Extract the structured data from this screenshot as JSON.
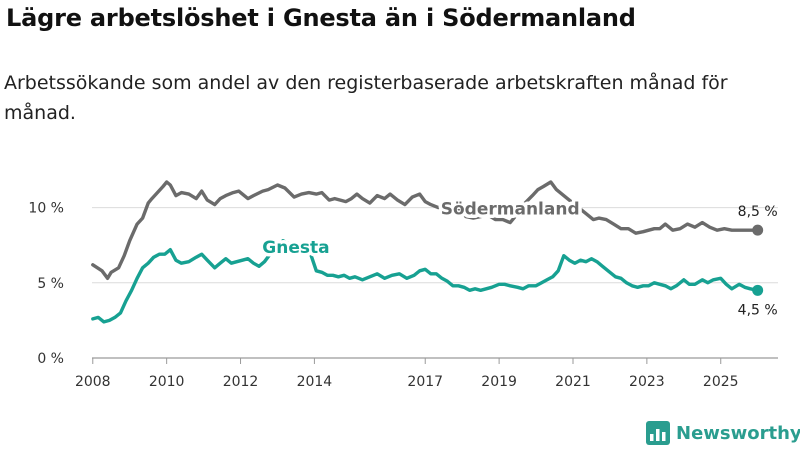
{
  "title": "Lägre arbetslöshet i Gnesta än i Södermanland",
  "subtitle": "Arbetssökande som andel av den registerbaserade arbetskraften månad för månad.",
  "brand": {
    "name": "Newsworthy",
    "color": "#2a9d8f"
  },
  "chart_data": {
    "type": "line",
    "title": "Lägre arbetslöshet i Gnesta än i Södermanland",
    "xlabel": "",
    "ylabel": "",
    "xlim": [
      2007.6,
      2026.55
    ],
    "ylim": [
      0,
      12.5
    ],
    "y_ticks": [
      0,
      5,
      10
    ],
    "y_tick_labels": [
      "0 %",
      "5 %",
      "10 %"
    ],
    "x_ticks": [
      2008,
      2010,
      2012,
      2014,
      2017,
      2019,
      2021,
      2023,
      2025
    ],
    "x_tick_labels": [
      "2008",
      "2010",
      "2012",
      "2014",
      "2017",
      "2019",
      "2021",
      "2023",
      "2025"
    ],
    "grid": true,
    "series": [
      {
        "name": "Södermanland",
        "color": "#6b6b6b",
        "end_label": "8,5 %",
        "x": [
          2008.0,
          2008.25,
          2008.4,
          2008.5,
          2008.7,
          2008.85,
          2009.0,
          2009.2,
          2009.35,
          2009.5,
          2009.6,
          2009.75,
          2009.9,
          2010.0,
          2010.1,
          2010.25,
          2010.4,
          2010.6,
          2010.8,
          2010.95,
          2011.1,
          2011.3,
          2011.45,
          2011.6,
          2011.8,
          2011.95,
          2012.2,
          2012.35,
          2012.6,
          2012.75,
          2013.0,
          2013.2,
          2013.45,
          2013.65,
          2013.85,
          2014.05,
          2014.2,
          2014.4,
          2014.55,
          2014.7,
          2014.85,
          2015.0,
          2015.15,
          2015.3,
          2015.5,
          2015.7,
          2015.9,
          2016.05,
          2016.25,
          2016.45,
          2016.65,
          2016.85,
          2017.0,
          2017.15,
          2017.35,
          2017.5,
          2017.7,
          2017.9,
          2018.1,
          2018.3,
          2018.5,
          2018.7,
          2018.9,
          2019.1,
          2019.3,
          2019.5,
          2019.7,
          2019.9,
          2020.05,
          2020.2,
          2020.4,
          2020.55,
          2020.7,
          2020.85,
          2021.0,
          2021.2,
          2021.4,
          2021.55,
          2021.7,
          2021.9,
          2022.1,
          2022.3,
          2022.5,
          2022.7,
          2022.9,
          2023.05,
          2023.2,
          2023.35,
          2023.5,
          2023.7,
          2023.9,
          2024.1,
          2024.3,
          2024.5,
          2024.7,
          2024.9,
          2025.1,
          2025.3,
          2025.5,
          2025.7,
          2025.85,
          2026.0
        ],
        "y": [
          6.2,
          5.8,
          5.3,
          5.7,
          6.0,
          6.8,
          7.8,
          8.9,
          9.3,
          10.3,
          10.6,
          11.0,
          11.4,
          11.7,
          11.5,
          10.8,
          11.0,
          10.9,
          10.6,
          11.1,
          10.5,
          10.2,
          10.6,
          10.8,
          11.0,
          11.1,
          10.6,
          10.8,
          11.1,
          11.2,
          11.5,
          11.3,
          10.7,
          10.9,
          11.0,
          10.9,
          11.0,
          10.5,
          10.6,
          10.5,
          10.4,
          10.6,
          10.9,
          10.6,
          10.3,
          10.8,
          10.6,
          10.9,
          10.5,
          10.2,
          10.7,
          10.9,
          10.4,
          10.2,
          10.0,
          10.2,
          10.3,
          9.9,
          9.4,
          9.3,
          9.4,
          9.5,
          9.2,
          9.2,
          9.0,
          9.6,
          10.3,
          10.8,
          11.2,
          11.4,
          11.7,
          11.2,
          10.9,
          10.6,
          10.3,
          9.9,
          9.5,
          9.2,
          9.3,
          9.2,
          8.9,
          8.6,
          8.6,
          8.3,
          8.4,
          8.5,
          8.6,
          8.6,
          8.9,
          8.5,
          8.6,
          8.9,
          8.7,
          9.0,
          8.7,
          8.5,
          8.6,
          8.5,
          8.5,
          8.5,
          8.5,
          8.5
        ]
      },
      {
        "name": "Gnesta",
        "color": "#17a192",
        "end_label": "4,5 %",
        "x": [
          2008.0,
          2008.15,
          2008.3,
          2008.45,
          2008.6,
          2008.75,
          2008.9,
          2009.05,
          2009.2,
          2009.35,
          2009.5,
          2009.65,
          2009.8,
          2009.95,
          2010.1,
          2010.25,
          2010.4,
          2010.6,
          2010.8,
          2010.95,
          2011.1,
          2011.3,
          2011.45,
          2011.6,
          2011.75,
          2011.9,
          2012.05,
          2012.2,
          2012.35,
          2012.5,
          2012.65,
          2012.8,
          2013.0,
          2013.15,
          2013.3,
          2013.45,
          2013.6,
          2013.75,
          2013.9,
          2014.05,
          2014.2,
          2014.35,
          2014.5,
          2014.65,
          2014.8,
          2014.95,
          2015.1,
          2015.3,
          2015.5,
          2015.7,
          2015.9,
          2016.1,
          2016.3,
          2016.5,
          2016.7,
          2016.85,
          2017.0,
          2017.15,
          2017.3,
          2017.45,
          2017.6,
          2017.75,
          2017.9,
          2018.05,
          2018.2,
          2018.35,
          2018.5,
          2018.65,
          2018.8,
          2019.0,
          2019.15,
          2019.3,
          2019.5,
          2019.65,
          2019.8,
          2020.0,
          2020.15,
          2020.3,
          2020.45,
          2020.6,
          2020.75,
          2020.9,
          2021.05,
          2021.2,
          2021.35,
          2021.5,
          2021.65,
          2021.8,
          2022.0,
          2022.15,
          2022.3,
          2022.45,
          2022.6,
          2022.75,
          2022.9,
          2023.05,
          2023.2,
          2023.35,
          2023.5,
          2023.65,
          2023.8,
          2024.0,
          2024.15,
          2024.3,
          2024.5,
          2024.65,
          2024.8,
          2025.0,
          2025.15,
          2025.3,
          2025.5,
          2025.65,
          2025.8,
          2026.0
        ],
        "y": [
          2.6,
          2.7,
          2.4,
          2.5,
          2.7,
          3.0,
          3.8,
          4.5,
          5.3,
          6.0,
          6.3,
          6.7,
          6.9,
          6.9,
          7.2,
          6.5,
          6.3,
          6.4,
          6.7,
          6.9,
          6.5,
          6.0,
          6.3,
          6.6,
          6.3,
          6.4,
          6.5,
          6.6,
          6.3,
          6.1,
          6.4,
          6.9,
          7.4,
          7.8,
          7.6,
          7.3,
          7.1,
          7.0,
          6.9,
          5.8,
          5.7,
          5.5,
          5.5,
          5.4,
          5.5,
          5.3,
          5.4,
          5.2,
          5.4,
          5.6,
          5.3,
          5.5,
          5.6,
          5.3,
          5.5,
          5.8,
          5.9,
          5.6,
          5.6,
          5.3,
          5.1,
          4.8,
          4.8,
          4.7,
          4.5,
          4.6,
          4.5,
          4.6,
          4.7,
          4.9,
          4.9,
          4.8,
          4.7,
          4.6,
          4.8,
          4.8,
          5.0,
          5.2,
          5.4,
          5.8,
          6.8,
          6.5,
          6.3,
          6.5,
          6.4,
          6.6,
          6.4,
          6.1,
          5.7,
          5.4,
          5.3,
          5.0,
          4.8,
          4.7,
          4.8,
          4.8,
          5.0,
          4.9,
          4.8,
          4.6,
          4.8,
          5.2,
          4.9,
          4.9,
          5.2,
          5.0,
          5.2,
          5.3,
          4.9,
          4.6,
          4.9,
          4.7,
          4.6,
          4.5
        ]
      }
    ]
  }
}
